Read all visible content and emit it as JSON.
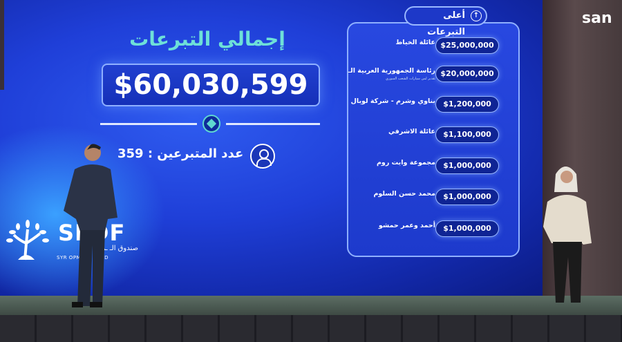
{
  "screen": {
    "title": "إجمالي التبرعات",
    "total_amount": "$60,030,599",
    "donor_count_label": "عدد المتبرعين : 359",
    "icons": [
      "user-icon",
      "arrow-up-icon"
    ]
  },
  "top_donations": {
    "header": "أعلى التبرعات",
    "items": [
      {
        "name": "عائلة الخياط",
        "amount": "$25,000,000"
      },
      {
        "name": "رئاسة الجمهورية العربية الـ",
        "sub": "تقدير لمن سيارات الشعب السوري",
        "amount": "$20,000,000"
      },
      {
        "name": "بناوي وشرم - شركة لوبال",
        "amount": "$1,200,000"
      },
      {
        "name": "عائلة الاشرفي",
        "amount": "$1,100,000"
      },
      {
        "name": "مجموعة وايت روم",
        "amount": "$1,000,000"
      },
      {
        "name": "محمد حسن السلوم",
        "amount": "$1,000,000"
      },
      {
        "name": "أحمد وعمر حمشو",
        "amount": "$1,000,000"
      }
    ]
  },
  "fund_logo": {
    "abbr": "SEDF",
    "arabic": "صندوق الـ ـري",
    "english": "SYR  OPMENT FUND"
  },
  "broadcaster_logo": "san",
  "colors": {
    "screen_blue": "#1f3fd8",
    "accent_teal": "#6ee0d8"
  }
}
